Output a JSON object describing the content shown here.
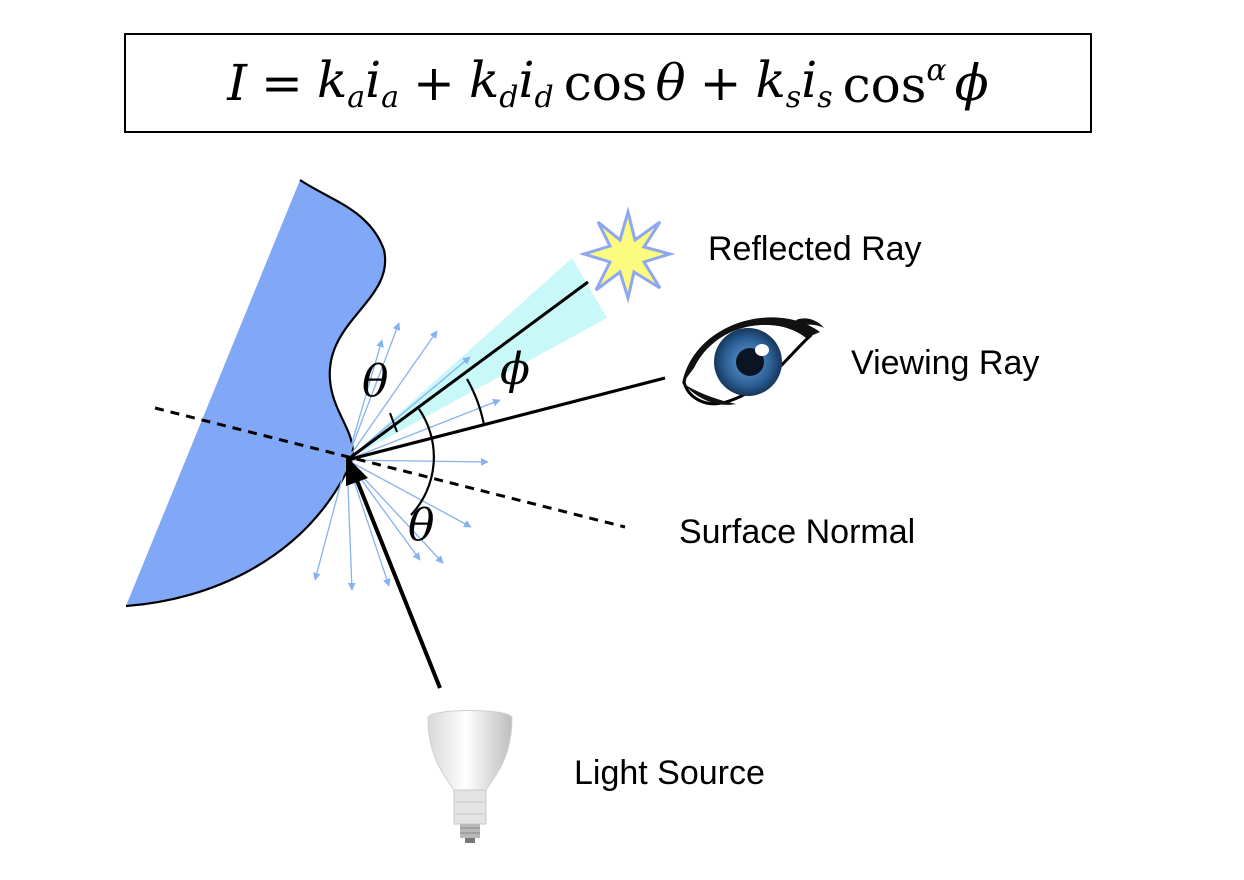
{
  "formula": {
    "lhs": "I",
    "eq": "=",
    "k": "k",
    "i": "i",
    "sub_a": "a",
    "sub_d": "d",
    "sub_s": "s",
    "plus": "+",
    "cos": "cos",
    "theta": "θ",
    "alpha": "α",
    "phi": "ϕ"
  },
  "labels": {
    "reflected_ray": "Reflected Ray",
    "viewing_ray": "Viewing Ray",
    "surface_normal": "Surface Normal",
    "light_source": "Light Source"
  },
  "angles": {
    "theta_upper": "θ",
    "theta_lower": "θ",
    "phi": "ϕ"
  },
  "colors": {
    "surface_fill": "#80a8f6",
    "scatter_arrows": "#86b2f0",
    "specular_lobe": "#c8f8f8",
    "star_fill": "#fbfb80",
    "star_stroke": "#8fa6f0",
    "eye_iris": "#2a5e94"
  },
  "icons": {
    "star": "star-icon",
    "eye": "eye-icon",
    "bulb": "light-bulb-icon"
  }
}
